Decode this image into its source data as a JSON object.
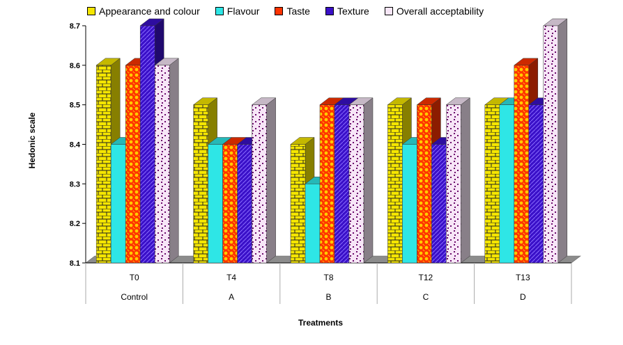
{
  "chart_data": {
    "type": "bar",
    "title": "",
    "xlabel": "Treatments",
    "ylabel": "Hedonic scale",
    "ylim": [
      8.1,
      8.7
    ],
    "yticks": [
      "8.1",
      "8.2",
      "8.3",
      "8.4",
      "8.5",
      "8.6",
      "8.7"
    ],
    "categories": [
      {
        "code": "T0",
        "name": "Control"
      },
      {
        "code": "T4",
        "name": "A"
      },
      {
        "code": "T8",
        "name": "B"
      },
      {
        "code": "T12",
        "name": "C"
      },
      {
        "code": "T13",
        "name": "D"
      }
    ],
    "series": [
      {
        "name": "Appearance and colour",
        "color": "#f5e600",
        "pattern": "brick",
        "values": [
          8.6,
          8.5,
          8.4,
          8.5,
          8.5
        ]
      },
      {
        "name": "Flavour",
        "color": "#2ee6e6",
        "pattern": "solid",
        "values": [
          8.4,
          8.4,
          8.3,
          8.4,
          8.5
        ]
      },
      {
        "name": "Taste",
        "color": "#ff3300",
        "pattern": "dots",
        "values": [
          8.6,
          8.4,
          8.5,
          8.5,
          8.6
        ]
      },
      {
        "name": "Texture",
        "color": "#3a10c8",
        "pattern": "diagonal",
        "values": [
          8.7,
          8.4,
          8.5,
          8.4,
          8.5
        ]
      },
      {
        "name": "Overall acceptability",
        "color": "#f7e6f7",
        "pattern": "confetti",
        "values": [
          8.6,
          8.5,
          8.5,
          8.5,
          8.7
        ]
      }
    ],
    "grid": false,
    "legend": "top"
  }
}
